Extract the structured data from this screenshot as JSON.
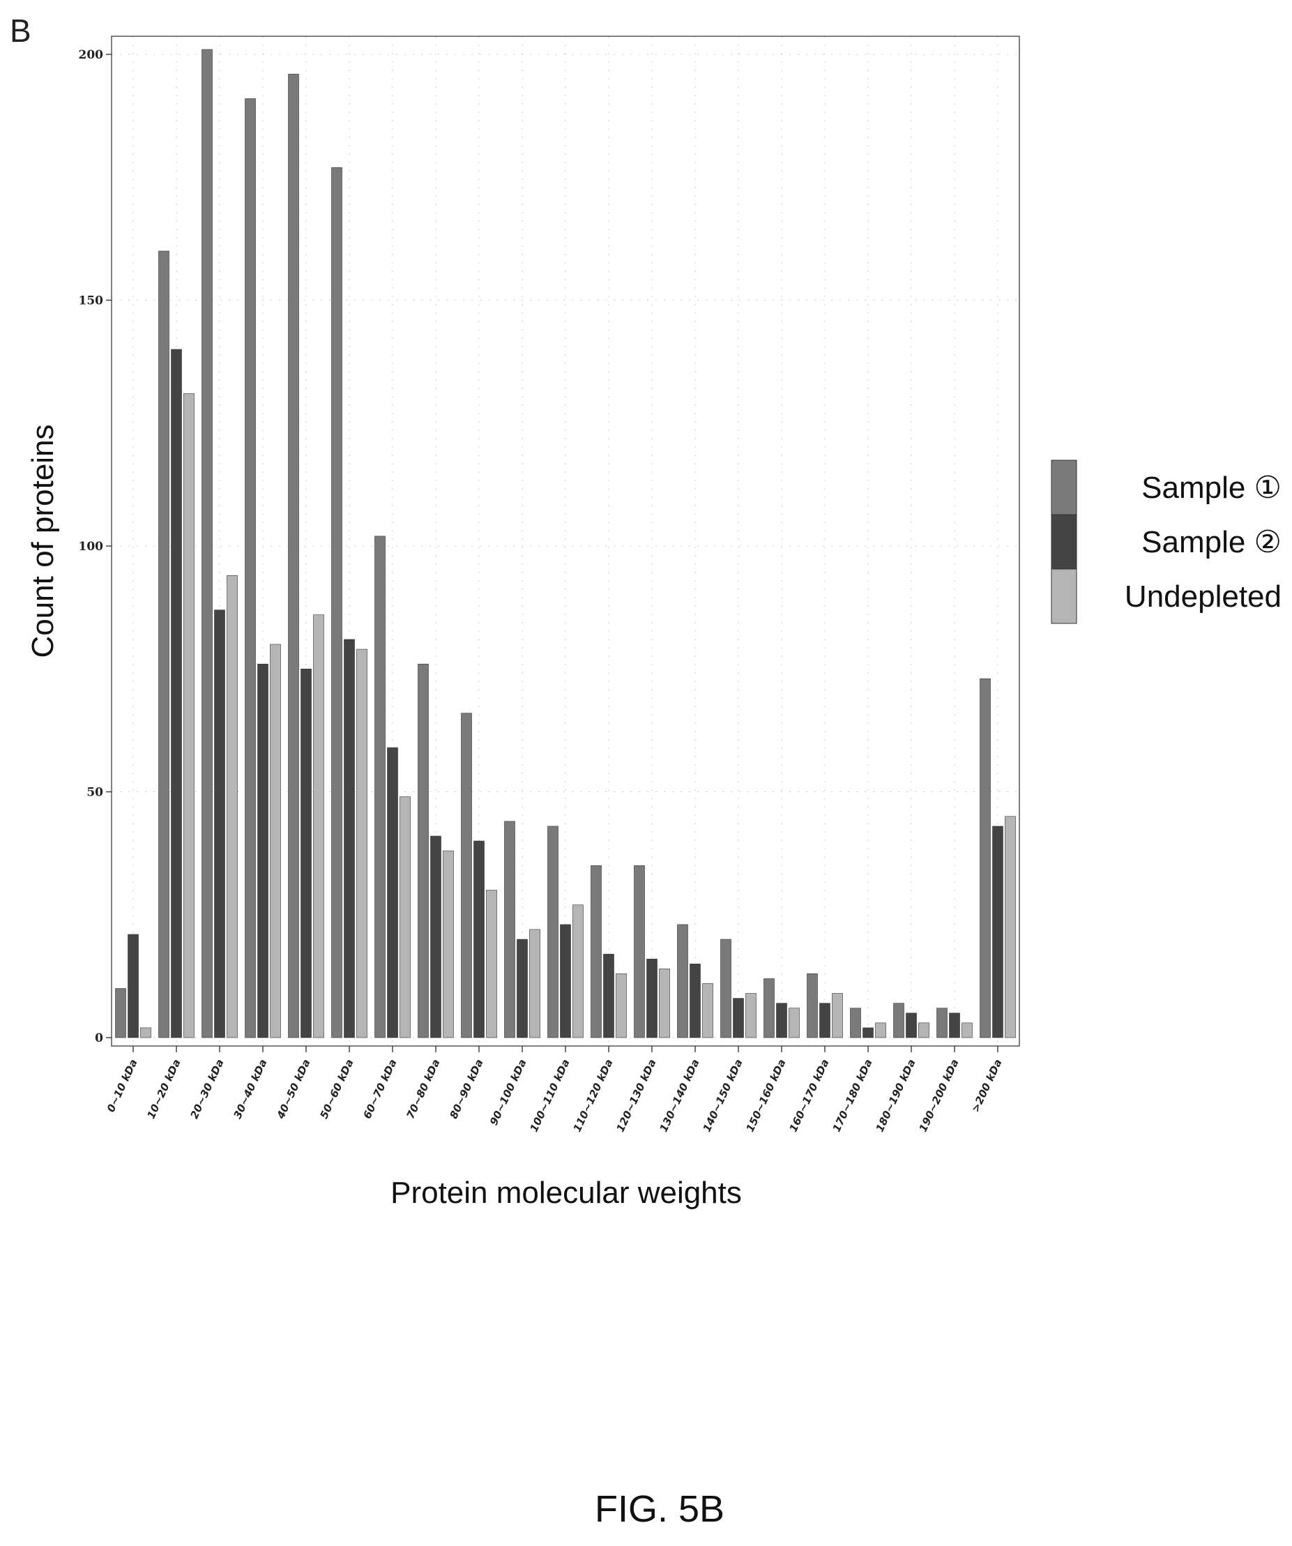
{
  "figure": {
    "panel_letter": "B",
    "caption": "FIG. 5B"
  },
  "chart_data": {
    "type": "bar",
    "title": "",
    "xlabel": "Protein molecular weights",
    "ylabel": "Count of proteins",
    "ylim": [
      0,
      205
    ],
    "yticks": [
      0,
      50,
      100,
      150,
      200
    ],
    "grid": "dotted",
    "legend_position": "right",
    "categories": [
      "0~10 kDa",
      "10~20 kDa",
      "20~30 kDa",
      "30~40 kDa",
      "40~50 kDa",
      "50~60 kDa",
      "60~70 kDa",
      "70~80 kDa",
      "80~90 kDa",
      "90~100 kDa",
      "100~110 kDa",
      "110~120 kDa",
      "120~130 kDa",
      "130~140 kDa",
      "140~150 kDa",
      "150~160 kDa",
      "160~170 kDa",
      "170~180 kDa",
      "180~190 kDa",
      "190~200 kDa",
      ">200 kDa"
    ],
    "series": [
      {
        "name": "Sample ①",
        "color": "#7a7a7a",
        "values": [
          10,
          160,
          201,
          191,
          196,
          177,
          102,
          76,
          66,
          44,
          43,
          35,
          35,
          23,
          20,
          12,
          13,
          6,
          7,
          6,
          73
        ]
      },
      {
        "name": "Sample ②",
        "color": "#444444",
        "values": [
          21,
          140,
          87,
          76,
          75,
          81,
          59,
          41,
          40,
          20,
          23,
          17,
          16,
          15,
          8,
          7,
          7,
          2,
          5,
          5,
          43
        ]
      },
      {
        "name": "Undepleted",
        "color": "#b5b5b5",
        "values": [
          2,
          131,
          94,
          80,
          86,
          79,
          49,
          38,
          30,
          22,
          27,
          13,
          14,
          11,
          9,
          6,
          9,
          3,
          3,
          3,
          45
        ]
      }
    ]
  }
}
